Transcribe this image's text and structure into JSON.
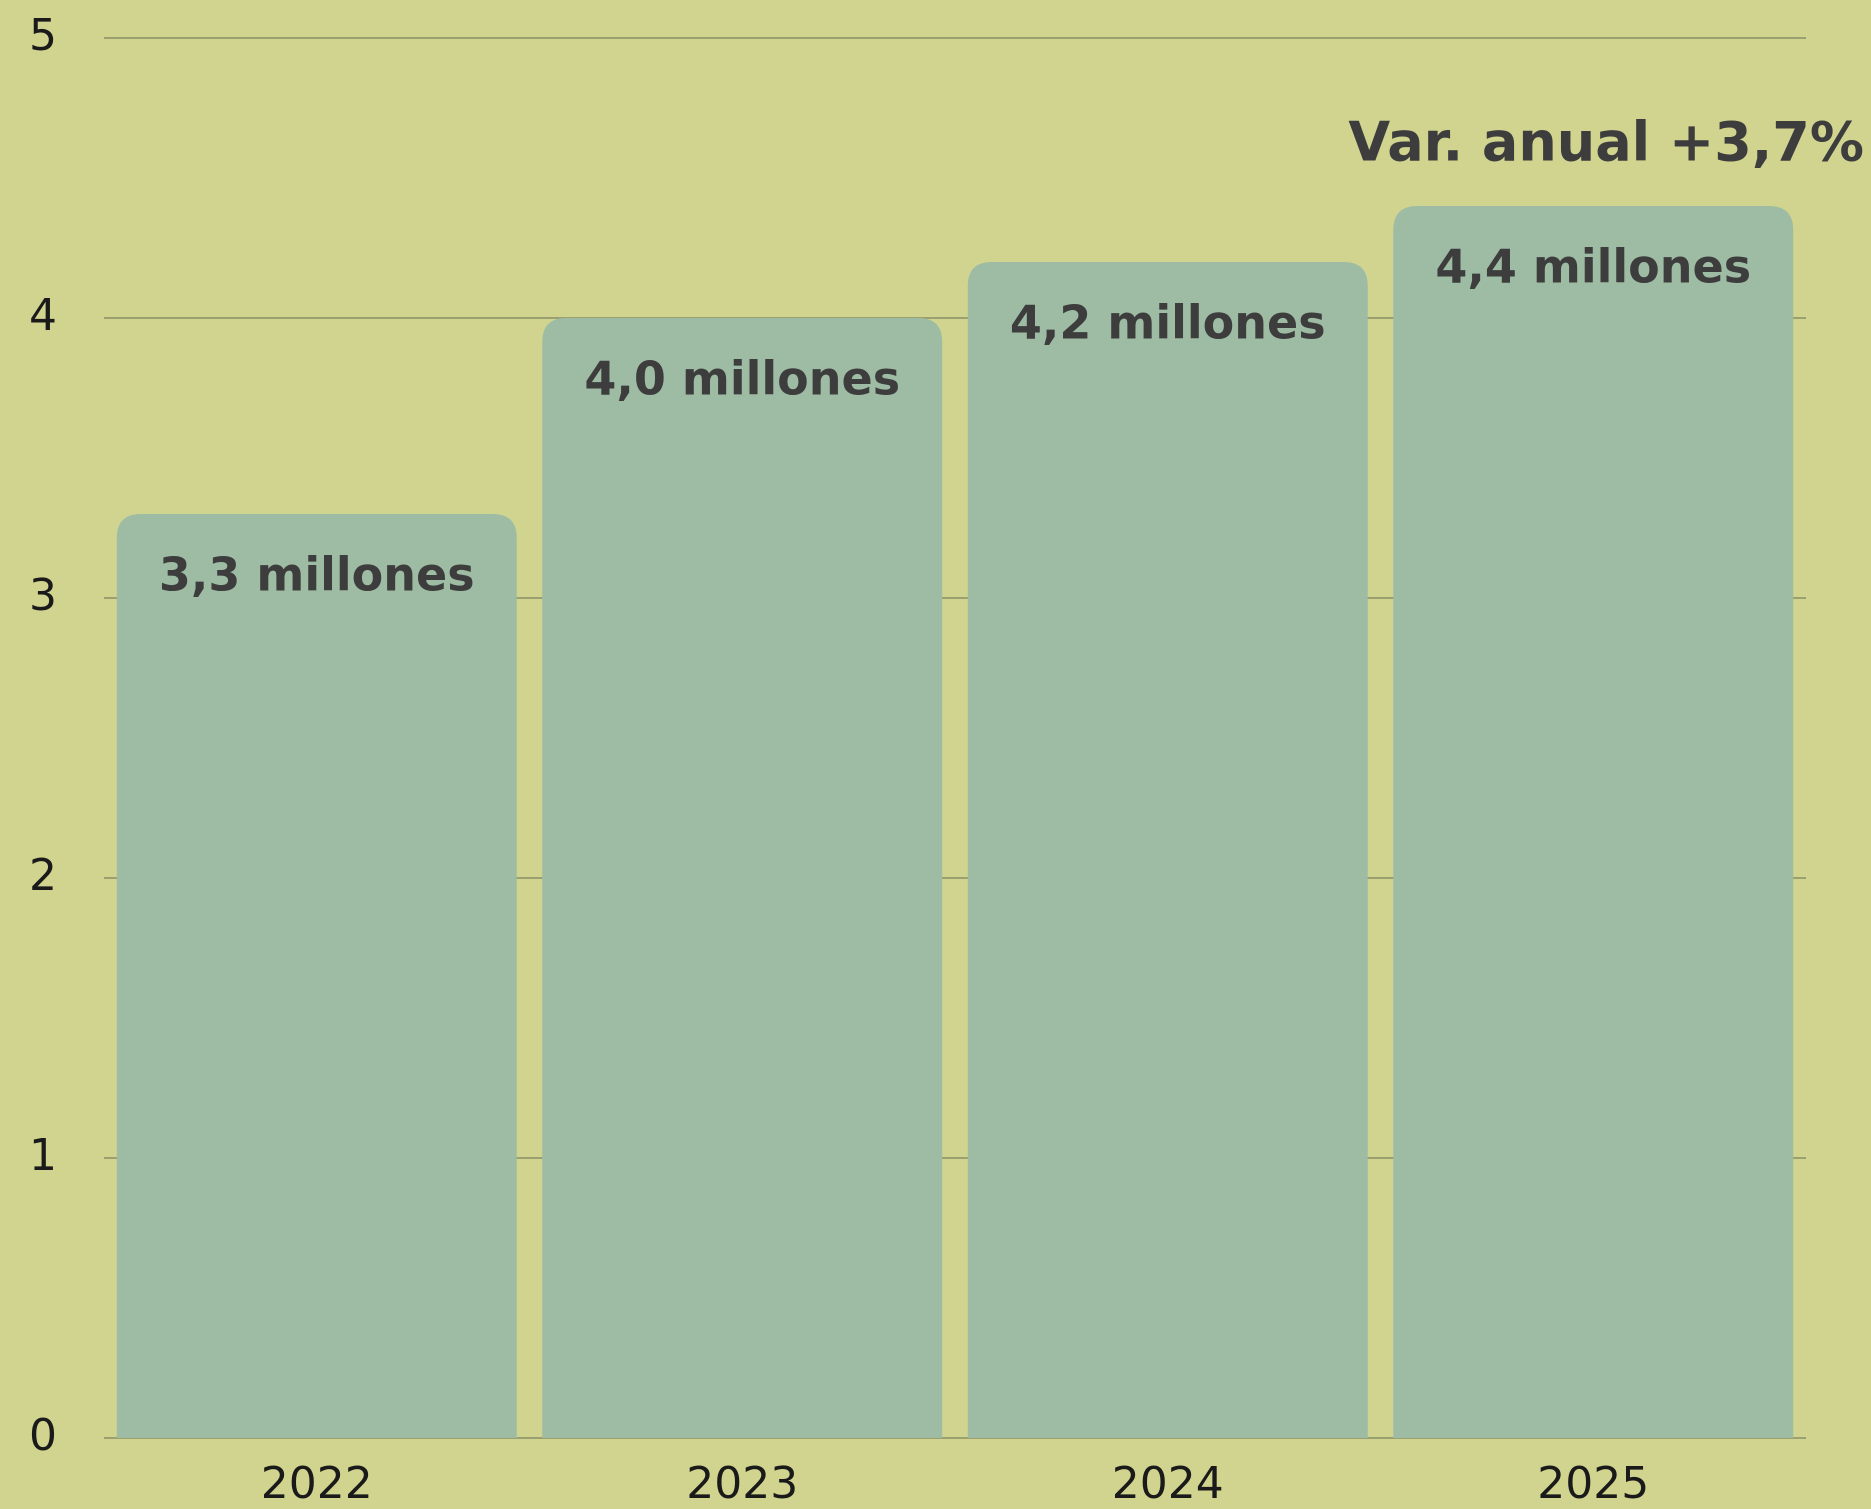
{
  "chart_data": {
    "type": "bar",
    "annotation": "Var. anual +3,7%",
    "categories": [
      "2022",
      "2023",
      "2024",
      "2025"
    ],
    "values": [
      3.3,
      4.0,
      4.2,
      4.4
    ],
    "value_labels": [
      "3,3 millones",
      "4,0 millones",
      "4,2 millones",
      "4,4 millones"
    ],
    "color": "#9ebca4",
    "ylim": [
      0,
      5
    ],
    "yticks": [
      0,
      1,
      2,
      3,
      4,
      5
    ],
    "grid": true
  }
}
